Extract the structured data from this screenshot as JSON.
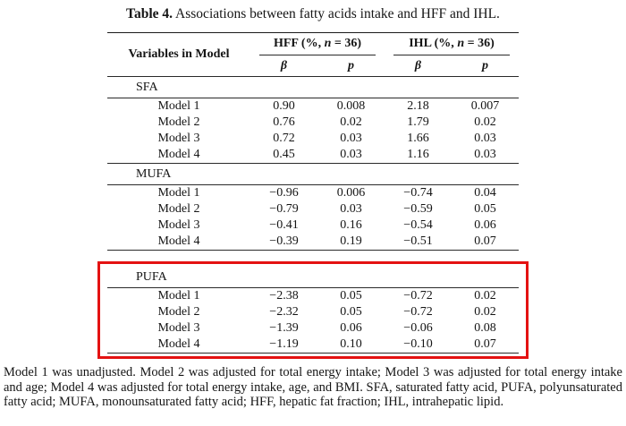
{
  "caption": {
    "label": "Table 4.",
    "text": " Associations between fatty acids intake and HFF and IHL."
  },
  "highlight_color": "#e41212",
  "table": {
    "row_header": "Variables in Model",
    "col_groups": [
      {
        "pre": "HFF (%, ",
        "italic": "n",
        "post": " = 36)"
      },
      {
        "pre": "IHL (%, ",
        "italic": "n",
        "post": " = 36)"
      }
    ],
    "subheaders": [
      "β",
      "p",
      "β",
      "p"
    ],
    "sections": [
      {
        "name": "SFA",
        "highlighted": false,
        "rows": [
          {
            "label": "Model 1",
            "values": [
              "0.90",
              "0.008",
              "2.18",
              "0.007"
            ]
          },
          {
            "label": "Model 2",
            "values": [
              "0.76",
              "0.02",
              "1.79",
              "0.02"
            ]
          },
          {
            "label": "Model 3",
            "values": [
              "0.72",
              "0.03",
              "1.66",
              "0.03"
            ]
          },
          {
            "label": "Model 4",
            "values": [
              "0.45",
              "0.03",
              "1.16",
              "0.03"
            ]
          }
        ]
      },
      {
        "name": "MUFA",
        "highlighted": false,
        "rows": [
          {
            "label": "Model 1",
            "values": [
              "−0.96",
              "0.006",
              "−0.74",
              "0.04"
            ]
          },
          {
            "label": "Model 2",
            "values": [
              "−0.79",
              "0.03",
              "−0.59",
              "0.05"
            ]
          },
          {
            "label": "Model 3",
            "values": [
              "−0.41",
              "0.16",
              "−0.54",
              "0.06"
            ]
          },
          {
            "label": "Model 4",
            "values": [
              "−0.39",
              "0.19",
              "−0.51",
              "0.07"
            ]
          }
        ]
      },
      {
        "name": "PUFA",
        "highlighted": true,
        "rows": [
          {
            "label": "Model 1",
            "values": [
              "−2.38",
              "0.05",
              "−0.72",
              "0.02"
            ]
          },
          {
            "label": "Model 2",
            "values": [
              "−2.32",
              "0.05",
              "−0.72",
              "0.02"
            ]
          },
          {
            "label": "Model 3",
            "values": [
              "−1.39",
              "0.06",
              "−0.06",
              "0.08"
            ]
          },
          {
            "label": "Model 4",
            "values": [
              "−1.19",
              "0.10",
              "−0.10",
              "0.07"
            ]
          }
        ]
      }
    ]
  },
  "footnote": "Model 1 was unadjusted. Model 2 was adjusted for total energy intake; Model 3 was adjusted for total energy intake and age; Model 4 was adjusted for total energy intake, age, and BMI. SFA, saturated fatty acid, PUFA, polyunsaturated fatty acid; MUFA, monounsaturated fatty acid; HFF, hepatic fat fraction; IHL, intrahepatic lipid."
}
